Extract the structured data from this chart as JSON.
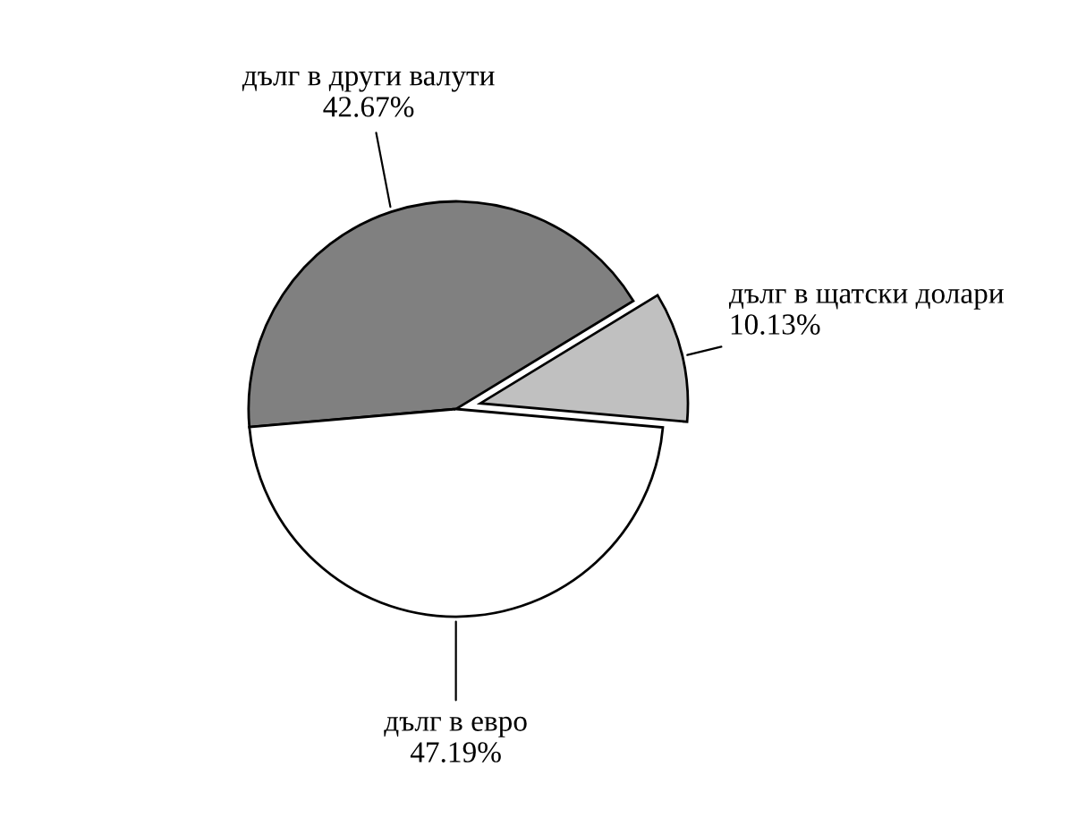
{
  "chart_data": {
    "type": "pie",
    "categories": [
      "дълг в други валути",
      "дълг в щатски долари",
      "дълг в евро"
    ],
    "values": [
      42.67,
      10.13,
      47.19
    ],
    "value_labels": [
      "42.67%",
      "10.13%",
      "47.19%"
    ],
    "colors": [
      "#808080",
      "#c0c0c0",
      "#ffffff"
    ],
    "legend": false
  }
}
